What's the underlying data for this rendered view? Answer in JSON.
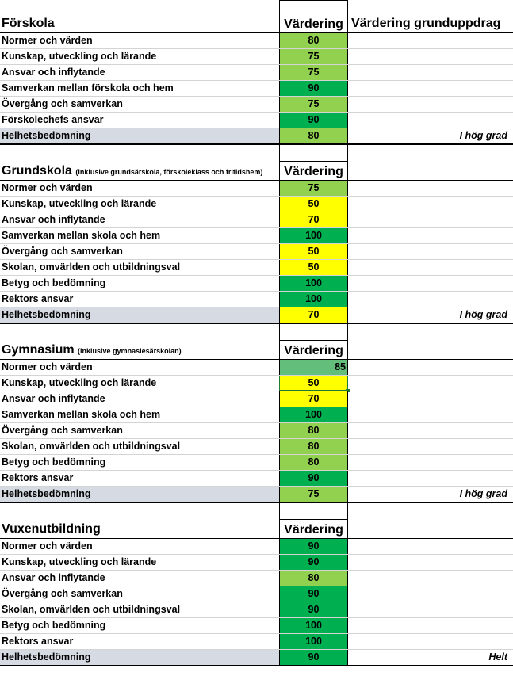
{
  "colors": {
    "light_green": "#92d050",
    "dark_green": "#00b050",
    "yellow": "#ffff00",
    "summary_gray": "#d6dbe3"
  },
  "sections": [
    {
      "title": "Förskola",
      "note": "",
      "value_header": "Värdering",
      "extra_header": "Värdering grunduppdrag",
      "rows": [
        {
          "label": "Normer och värden",
          "value": "80",
          "color": "g-med"
        },
        {
          "label": "Kunskap, utveckling och lärande",
          "value": "75",
          "color": "g-med"
        },
        {
          "label": "Ansvar och inflytande",
          "value": "75",
          "color": "g-med"
        },
        {
          "label": "Samverkan mellan förskola och hem",
          "value": "90",
          "color": "g-dark"
        },
        {
          "label": "Övergång och samverkan",
          "value": "75",
          "color": "g-med"
        },
        {
          "label": "Förskolechefs ansvar",
          "value": "90",
          "color": "g-dark"
        }
      ],
      "total": {
        "label": "Helhetsbedömning",
        "value": "80",
        "color": "g-med",
        "grade": "I hög grad"
      }
    },
    {
      "title": "Grundskola",
      "note": "(inklusive grundsärskola, förskoleklass och fritidshem)",
      "value_header": "Värdering",
      "rows": [
        {
          "label": "Normer och värden",
          "value": "75",
          "color": "g-med"
        },
        {
          "label": "Kunskap, utveckling och lärande",
          "value": "50",
          "color": "yel"
        },
        {
          "label": "Ansvar och inflytande",
          "value": "70",
          "color": "yel"
        },
        {
          "label": "Samverkan mellan skola och hem",
          "value": "100",
          "color": "g-dark"
        },
        {
          "label": "Övergång och samverkan",
          "value": "50",
          "color": "yel"
        },
        {
          "label": "Skolan, omvärlden och utbildningsval",
          "value": "50",
          "color": "yel"
        },
        {
          "label": "Betyg och bedömning",
          "value": "100",
          "color": "g-dark"
        },
        {
          "label": "Rektors  ansvar",
          "value": "100",
          "color": "g-dark"
        }
      ],
      "total": {
        "label": "Helhetsbedömning",
        "value": "70",
        "color": "yel",
        "grade": "I hög grad"
      }
    },
    {
      "title": "Gymnasium",
      "note": "(inklusive gymnasiesärskolan)",
      "value_header": "Värdering",
      "rows": [
        {
          "label": "Normer och värden",
          "value": "85",
          "color": "g-sel",
          "align": "right"
        },
        {
          "label": "Kunskap, utveckling och lärande",
          "value": "50",
          "color": "yel",
          "selected": true
        },
        {
          "label": "Ansvar och inflytande",
          "value": "70",
          "color": "yel"
        },
        {
          "label": "Samverkan mellan skola och hem",
          "value": "100",
          "color": "g-dark"
        },
        {
          "label": "Övergång och samverkan",
          "value": "80",
          "color": "g-med"
        },
        {
          "label": "Skolan, omvärlden och utbildningsval",
          "value": "80",
          "color": "g-med"
        },
        {
          "label": "Betyg och bedömning",
          "value": "80",
          "color": "g-med"
        },
        {
          "label": "Rektors ansvar",
          "value": "90",
          "color": "g-dark"
        }
      ],
      "total": {
        "label": "Helhetsbedömning",
        "value": "75",
        "color": "g-med",
        "grade": "I hög grad"
      }
    },
    {
      "title": "Vuxenutbildning",
      "note": "",
      "value_header": "Värdering",
      "rows": [
        {
          "label": "Normer och värden",
          "value": "90",
          "color": "g-dark"
        },
        {
          "label": "Kunskap, utveckling och lärande",
          "value": "90",
          "color": "g-dark"
        },
        {
          "label": "Ansvar och inflytande",
          "value": "80",
          "color": "g-med"
        },
        {
          "label": "Övergång och samverkan",
          "value": "90",
          "color": "g-dark"
        },
        {
          "label": "Skolan, omvärlden och utbildningsval",
          "value": "90",
          "color": "g-dark"
        },
        {
          "label": "Betyg och bedömning",
          "value": "100",
          "color": "g-dark"
        },
        {
          "label": "Rektors ansvar",
          "value": "100",
          "color": "g-dark"
        }
      ],
      "total": {
        "label": "Helhetsbedömning",
        "value": "90",
        "color": "g-dark",
        "grade": "Helt"
      }
    }
  ]
}
